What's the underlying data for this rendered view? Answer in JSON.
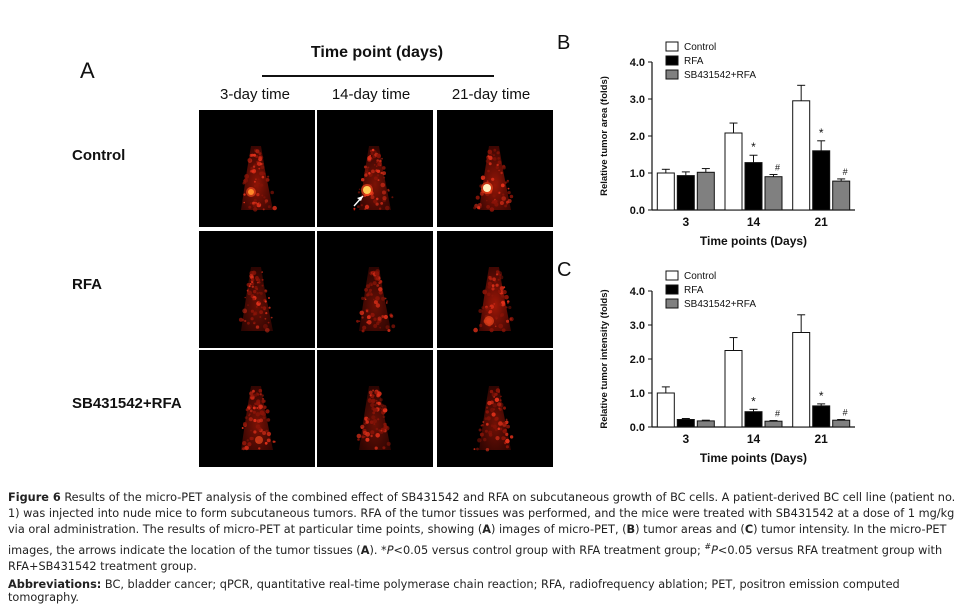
{
  "panel_a": {
    "letter": "A",
    "header": "Time point (days)",
    "columns": [
      "3-day time",
      "14-day time",
      "21-day time"
    ],
    "rows": [
      "Control",
      "RFA",
      "SB431542+RFA"
    ]
  },
  "chart_data": [
    {
      "letter": "B",
      "type": "bar",
      "xlabel": "Time points (Days)",
      "ylabel": "Relative tumor area (folds)",
      "categories": [
        "3",
        "14",
        "21"
      ],
      "ylim": [
        0,
        4
      ],
      "yticks": [
        "0.0",
        "1.0",
        "2.0",
        "3.0",
        "4.0"
      ],
      "legend_position": "top-left",
      "series": [
        {
          "name": "Control",
          "color": "#ffffff",
          "values": [
            1.0,
            2.08,
            2.95
          ],
          "errors": [
            0.1,
            0.27,
            0.42
          ]
        },
        {
          "name": "RFA",
          "color": "#000000",
          "values": [
            0.93,
            1.28,
            1.6
          ],
          "errors": [
            0.1,
            0.2,
            0.27
          ]
        },
        {
          "name": "SB431542+RFA",
          "color": "#808080",
          "values": [
            1.02,
            0.9,
            0.78
          ],
          "errors": [
            0.1,
            0.06,
            0.06
          ]
        }
      ],
      "annotations": [
        {
          "category": "14",
          "series": "RFA",
          "text": "*"
        },
        {
          "category": "14",
          "series": "SB431542+RFA",
          "text": "#"
        },
        {
          "category": "21",
          "series": "RFA",
          "text": "*"
        },
        {
          "category": "21",
          "series": "SB431542+RFA",
          "text": "#"
        }
      ]
    },
    {
      "letter": "C",
      "type": "bar",
      "xlabel": "Time points (Days)",
      "ylabel": "Relative tumor intensity (folds)",
      "categories": [
        "3",
        "14",
        "21"
      ],
      "ylim": [
        0,
        4
      ],
      "yticks": [
        "0.0",
        "1.0",
        "2.0",
        "3.0",
        "4.0"
      ],
      "legend_position": "top-left",
      "series": [
        {
          "name": "Control",
          "color": "#ffffff",
          "values": [
            1.0,
            2.25,
            2.78
          ],
          "errors": [
            0.18,
            0.38,
            0.52
          ]
        },
        {
          "name": "RFA",
          "color": "#000000",
          "values": [
            0.22,
            0.45,
            0.62
          ],
          "errors": [
            0.03,
            0.07,
            0.06
          ]
        },
        {
          "name": "SB431542+RFA",
          "color": "#808080",
          "values": [
            0.18,
            0.17,
            0.2
          ],
          "errors": [
            0.02,
            0.02,
            0.02
          ]
        }
      ],
      "annotations": [
        {
          "category": "14",
          "series": "RFA",
          "text": "*"
        },
        {
          "category": "14",
          "series": "SB431542+RFA",
          "text": "#"
        },
        {
          "category": "21",
          "series": "RFA",
          "text": "*"
        },
        {
          "category": "21",
          "series": "SB431542+RFA",
          "text": "#"
        }
      ]
    }
  ],
  "caption": {
    "figure_label": "Figure 6",
    "part1": " Results of the micro-PET analysis of the combined effect of SB431542 and RFA on subcutaneous growth of BC cells. A patient-derived BC cell line (patient no. 1) was injected into nude mice to form subcutaneous tumors. RFA of the tumor tissues was performed, and the mice were treated with SB431542 at a dose of 1 mg/kg via oral administration. The results of micro-PET at particular time points, showing (",
    "refA": "A",
    "part2": ") images of micro-PET, (",
    "refB": "B",
    "part3": ") tumor areas and (",
    "refC": "C",
    "part4": ") tumor intensity. In the micro-PET images, the arrows indicate the location of the tumor tissues (",
    "refA2": "A",
    "part5": "). *",
    "p1": "P",
    "part6": "<0.05 versus control group with RFA treatment group; ",
    "hash": "#",
    "p2": "P",
    "part7": "<0.05 versus RFA treatment group with RFA+SB431542 treatment group."
  },
  "abbreviations": {
    "label": "Abbreviations:",
    "text": " BC, bladder cancer; qPCR, quantitative real-time polymerase chain reaction; RFA, radiofrequency ablation; PET, positron emission computed tomography."
  }
}
